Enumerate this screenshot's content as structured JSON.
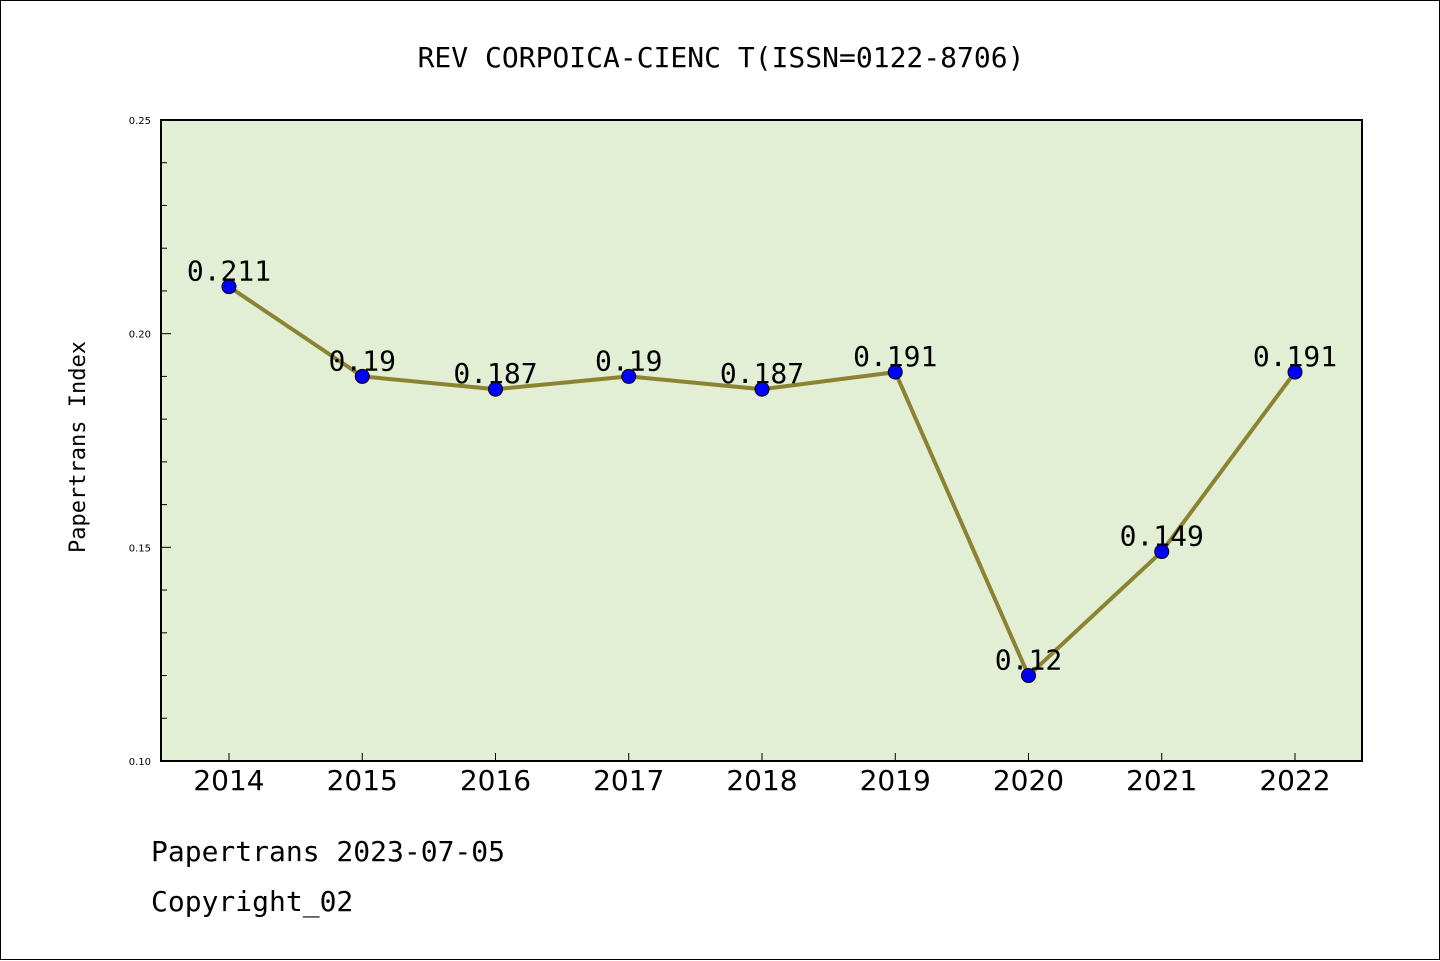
{
  "chart_data": {
    "type": "line",
    "title": "REV CORPOICA-CIENC T(ISSN=0122-8706)",
    "xlabel": "",
    "ylabel": "Papertrans Index",
    "categories": [
      "2014",
      "2015",
      "2016",
      "2017",
      "2018",
      "2019",
      "2020",
      "2021",
      "2022"
    ],
    "values": [
      0.211,
      0.19,
      0.187,
      0.19,
      0.187,
      0.191,
      0.12,
      0.149,
      0.191
    ],
    "value_labels": [
      "0.211",
      "0.19",
      "0.187",
      "0.19",
      "0.187",
      "0.191",
      "0.12",
      "0.149",
      "0.191"
    ],
    "ylim": [
      0.1,
      0.25
    ],
    "yticks": [
      "0.10",
      "0.15",
      "0.20",
      "0.25"
    ],
    "grid": false,
    "colors": {
      "plot_background": "#e2efd4",
      "line": "#8b8232",
      "marker": "#0000ff"
    }
  },
  "footer": {
    "line1": "Papertrans 2023-07-05",
    "line2": "Copyright_02"
  }
}
